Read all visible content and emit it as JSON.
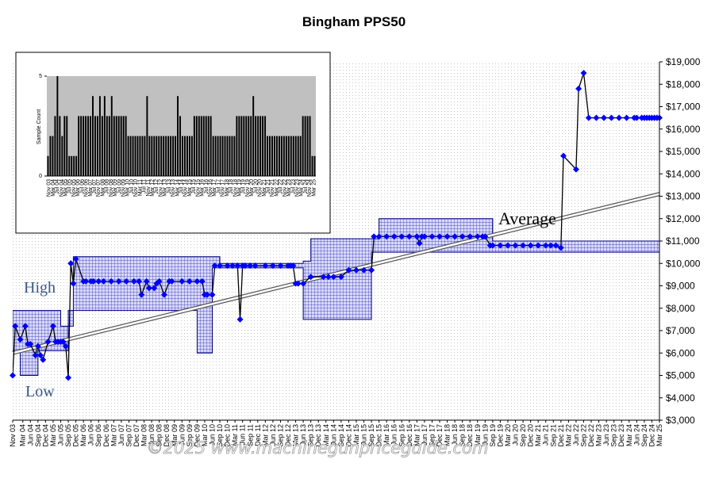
{
  "chart_data": [
    {
      "type": "line",
      "title": "Bingham PPS50",
      "y_ticks": [
        "$3,000",
        "$4,000",
        "$5,000",
        "$6,000",
        "$7,000",
        "$8,000",
        "$9,000",
        "$10,000",
        "$11,000",
        "$12,000",
        "$13,000",
        "$14,000",
        "$15,000",
        "$16,000",
        "$17,000",
        "$18,000",
        "$19,000"
      ],
      "ylim": [
        3000,
        19000
      ],
      "xlim": [
        "Nov 03",
        "Mar 25"
      ],
      "x_ticks": [
        "Nov 03",
        "Mar 04",
        "Jun 04",
        "Sep 04",
        "Dec 04",
        "Mar 05",
        "Jun 05",
        "Sep 05",
        "Dec 05",
        "Mar 06",
        "Jun 06",
        "Sep 06",
        "Dec 06",
        "Mar 07",
        "Jun 07",
        "Sep 07",
        "Dec 07",
        "Mar 08",
        "Jun 08",
        "Sep 08",
        "Dec 08",
        "Mar 09",
        "Jun 09",
        "Sep 09",
        "Dec 09",
        "Mar 10",
        "Jun 10",
        "Sep 10",
        "Dec 10",
        "Mar 11",
        "Jun 11",
        "Sep 11",
        "Dec 11",
        "Mar 12",
        "Jun 12",
        "Sep 12",
        "Dec 12",
        "Mar 13",
        "Jun 13",
        "Sep 13",
        "Dec 13",
        "Mar 14",
        "Jun 14",
        "Sep 14",
        "Dec 14",
        "Mar 15",
        "Jun 15",
        "Sep 15",
        "Dec 15",
        "Mar 16",
        "Jun 16",
        "Sep 16",
        "Dec 16",
        "Mar 17",
        "Jun 17",
        "Sep 17",
        "Dec 17",
        "Mar 18",
        "Jun 18",
        "Sep 18",
        "Dec 18",
        "Mar 19",
        "Jun 19",
        "Sep 19",
        "Dec 19",
        "Mar 20",
        "Jun 20",
        "Sep 20",
        "Dec 20",
        "Mar 21",
        "Jun 21",
        "Sep 21",
        "Dec 21",
        "Mar 22",
        "Jun 22",
        "Sep 22",
        "Dec 22",
        "Mar 23",
        "Jun 23",
        "Sep 23",
        "Dec 23",
        "Mar 24",
        "Jun 24",
        "Sep 24",
        "Dec 24",
        "Mar 25"
      ],
      "series": [
        {
          "role": "price",
          "color": "#0000ff",
          "x": [
            "Nov 03",
            "Dec 03",
            "Feb 04",
            "Apr 04",
            "May 04",
            "Jun 04",
            "Aug 04",
            "Sep 04",
            "Oct 04",
            "Nov 04",
            "Jan 05",
            "Mar 05",
            "Apr 05",
            "May 05",
            "Jun 05",
            "Jul 05",
            "Aug 05",
            "Sep 05",
            "Oct 05",
            "Nov 05",
            "Dec 05",
            "Mar 06",
            "Apr 06",
            "Jun 06",
            "Jul 06",
            "Sep 06",
            "Nov 06",
            "Feb 07",
            "May 07",
            "Aug 07",
            "Nov 07",
            "Jan 08",
            "Feb 08",
            "Apr 08",
            "May 08",
            "Jul 08",
            "Aug 08",
            "Sep 08",
            "Nov 08",
            "Jan 09",
            "Feb 09",
            "Jun 09",
            "Sep 09",
            "Dec 09",
            "Feb 10",
            "Mar 10",
            "Apr 10",
            "Jun 10",
            "Jul 10",
            "Sep 10",
            "Dec 10",
            "Feb 11",
            "Apr 11",
            "May 11",
            "Jun 11",
            "Jul 11",
            "Sep 11",
            "Nov 11",
            "Mar 12",
            "Jun 12",
            "Sep 12",
            "Dec 12",
            "Jan 13",
            "Feb 13",
            "Mar 13",
            "Apr 13",
            "Jun 13",
            "Sep 13",
            "Feb 14",
            "Apr 14",
            "Jun 14",
            "Sep 14",
            "Dec 14",
            "Mar 15",
            "Jun 15",
            "Sep 15",
            "Oct 15",
            "Dec 15",
            "Mar 16",
            "Jun 16",
            "Sep 16",
            "Dec 16",
            "Mar 17",
            "Apr 17",
            "May 17",
            "Jun 17",
            "Sep 17",
            "Dec 17",
            "Mar 18",
            "Jun 18",
            "Sep 18",
            "Dec 18",
            "Mar 19",
            "May 19",
            "Jun 19",
            "Aug 19",
            "Sep 19",
            "Dec 19",
            "Mar 20",
            "Jun 20",
            "Sep 20",
            "Dec 20",
            "Mar 21",
            "Jun 21",
            "Aug 21",
            "Oct 21",
            "Dec 21",
            "Jan 22",
            "Jun 22",
            "Jul 22",
            "Sep 22",
            "Nov 22",
            "Feb 23",
            "May 23",
            "Aug 23",
            "Nov 23",
            "Feb 24",
            "May 24",
            "Jun 24",
            "Aug 24",
            "Sep 24",
            "Oct 24",
            "Nov 24",
            "Dec 24",
            "Jan 25",
            "Feb 25",
            "Mar 25"
          ],
          "y": [
            5000,
            7200,
            6600,
            7200,
            6400,
            6400,
            5900,
            6300,
            5900,
            5700,
            6500,
            7200,
            6500,
            6500,
            6500,
            6500,
            6300,
            4900,
            10000,
            9100,
            10200,
            9200,
            9200,
            9200,
            9200,
            9200,
            9200,
            9200,
            9200,
            9200,
            9200,
            9200,
            8600,
            9200,
            8900,
            8900,
            9100,
            9200,
            8600,
            9200,
            9200,
            9200,
            9200,
            9200,
            9200,
            8600,
            8600,
            8600,
            9900,
            9900,
            9900,
            9900,
            9900,
            7500,
            9900,
            9900,
            9900,
            9900,
            9900,
            9900,
            9900,
            9900,
            9900,
            9900,
            9100,
            9100,
            9100,
            9400,
            9400,
            9400,
            9400,
            9400,
            9700,
            9700,
            9700,
            9700,
            11200,
            11200,
            11200,
            11200,
            11200,
            11200,
            11200,
            10900,
            11200,
            11200,
            11200,
            11200,
            11200,
            11200,
            11200,
            11200,
            11200,
            11200,
            11200,
            10800,
            10800,
            10800,
            10800,
            10800,
            10800,
            10800,
            10800,
            10800,
            10800,
            10800,
            10700,
            14800,
            14200,
            17800,
            18500,
            16500,
            16500,
            16500,
            16500,
            16500,
            16500,
            16500,
            16500,
            16500,
            16500,
            16500,
            16500,
            16500,
            16500,
            16500,
            16500
          ]
        }
      ],
      "band": {
        "role": "high-low range",
        "color": "#000080",
        "x": [
          "Nov 03",
          "Feb 04",
          "Sep 04",
          "Dec 04",
          "Mar 05",
          "May 05",
          "Jun 05",
          "Sep 05",
          "Nov 05",
          "Dec 05",
          "Mar 06",
          "Jun 06",
          "Sep 06",
          "Dec 06",
          "Mar 07",
          "Jun 07",
          "Sep 07",
          "Dec 07",
          "Mar 08",
          "Jun 08",
          "Sep 08",
          "Dec 08",
          "Mar 09",
          "Jun 09",
          "Sep 09",
          "Dec 09",
          "Mar 10",
          "Jun 10",
          "Sep 10",
          "Dec 10",
          "Jun 11",
          "Dec 11",
          "Jun 12",
          "Dec 12",
          "Jun 13",
          "Sep 13",
          "Dec 13",
          "Jun 14",
          "Dec 14",
          "Jun 15",
          "Sep 15",
          "Dec 15",
          "Jun 16",
          "Dec 16",
          "Jun 17",
          "Dec 17",
          "Jun 18",
          "Dec 18",
          "Jun 19",
          "Sep 19",
          "Dec 19",
          "Jun 20",
          "Dec 20",
          "Jun 21",
          "Dec 21",
          "Mar 25"
        ],
        "high": [
          7900,
          7900,
          7900,
          7900,
          7900,
          7900,
          7200,
          7200,
          10300,
          10300,
          10300,
          10300,
          10300,
          10300,
          10300,
          10300,
          10300,
          10300,
          10300,
          10300,
          10300,
          10300,
          10300,
          10300,
          10300,
          10300,
          10300,
          10300,
          10000,
          10000,
          10000,
          10000,
          10000,
          10000,
          10100,
          11100,
          11100,
          11100,
          11100,
          11100,
          11100,
          12000,
          12000,
          12000,
          12000,
          12000,
          12000,
          12000,
          12000,
          11000,
          11000,
          11000,
          11000,
          11000,
          11000,
          11000
        ],
        "low": [
          6100,
          6100,
          5000,
          6100,
          6100,
          6100,
          6100,
          6100,
          7900,
          7900,
          7900,
          7900,
          7900,
          7900,
          7900,
          7900,
          7900,
          7900,
          7900,
          7900,
          7900,
          7900,
          7900,
          7900,
          7900,
          7900,
          6000,
          6000,
          9800,
          9800,
          9800,
          9800,
          9800,
          9800,
          9800,
          7500,
          7500,
          7500,
          7500,
          7500,
          7500,
          10500,
          10500,
          10500,
          10500,
          10500,
          10500,
          10500,
          10500,
          10500,
          10500,
          10500,
          10500,
          10500,
          10500,
          10500
        ]
      },
      "average_trend": {
        "start": [
          "Nov 03",
          6000
        ],
        "end": [
          "Mar 25",
          13100
        ]
      },
      "annotations": [
        "High",
        "Low",
        "Average"
      ],
      "watermark": "©2025 www.machinegunpriceguide.com",
      "grid": true
    },
    {
      "type": "bar",
      "ylabel": "Sample Count",
      "y_ticks": [
        "0",
        "5"
      ],
      "ylim": [
        0,
        5
      ],
      "x_ticks": [
        "Nov 03",
        "Mar 04",
        "Jul 04",
        "Nov 04",
        "Mar 05",
        "Jul 05",
        "Nov 05",
        "Mar 06",
        "Jul 06",
        "Nov 06",
        "Mar 07",
        "Jul 07",
        "Nov 07",
        "Mar 08",
        "Jul 08",
        "Nov 08",
        "Mar 09",
        "Jul 09",
        "Nov 09",
        "Mar 10",
        "Jul 10",
        "Nov 10",
        "Mar 11",
        "Jul 11",
        "Nov 11",
        "Mar 12",
        "Jul 12",
        "Nov 12",
        "Mar 13",
        "Jul 13",
        "Nov 13",
        "Mar 14",
        "Jul 14",
        "Nov 14",
        "Mar 15",
        "Jul 15",
        "Nov 15",
        "Mar 16",
        "Jul 16",
        "Nov 16",
        "Mar 17",
        "Jul 17",
        "Nov 17",
        "Mar 18",
        "Jul 18",
        "Nov 18",
        "Mar 19",
        "Jul 19",
        "Nov 19",
        "Mar 20",
        "Jul 20",
        "Nov 20",
        "Mar 21",
        "Jul 21",
        "Nov 21",
        "Mar 22",
        "Jul 22",
        "Nov 22",
        "Mar 23",
        "Jul 23",
        "Nov 23",
        "Mar 24",
        "Jul 24",
        "Nov 24",
        "Mar 25"
      ],
      "values": [
        1,
        2,
        2,
        3,
        5,
        3,
        2,
        3,
        3,
        1,
        1,
        1,
        1,
        3,
        3,
        3,
        3,
        3,
        3,
        4,
        3,
        3,
        4,
        3,
        4,
        3,
        3,
        4,
        3,
        3,
        3,
        3,
        3,
        3,
        2,
        2,
        2,
        2,
        2,
        2,
        2,
        2,
        4,
        2,
        2,
        2,
        2,
        2,
        2,
        2,
        2,
        2,
        2,
        2,
        2,
        4,
        3,
        2,
        2,
        2,
        2,
        2,
        3,
        3,
        3,
        3,
        3,
        3,
        3,
        3,
        2,
        2,
        2,
        2,
        2,
        2,
        2,
        2,
        2,
        2,
        3,
        3,
        3,
        3,
        3,
        3,
        3,
        4,
        3,
        3,
        3,
        3,
        3,
        2,
        2,
        2,
        2,
        2,
        2,
        2,
        2,
        2,
        2,
        2,
        2,
        2,
        2,
        2,
        3,
        3,
        3,
        3,
        1,
        1
      ]
    }
  ]
}
